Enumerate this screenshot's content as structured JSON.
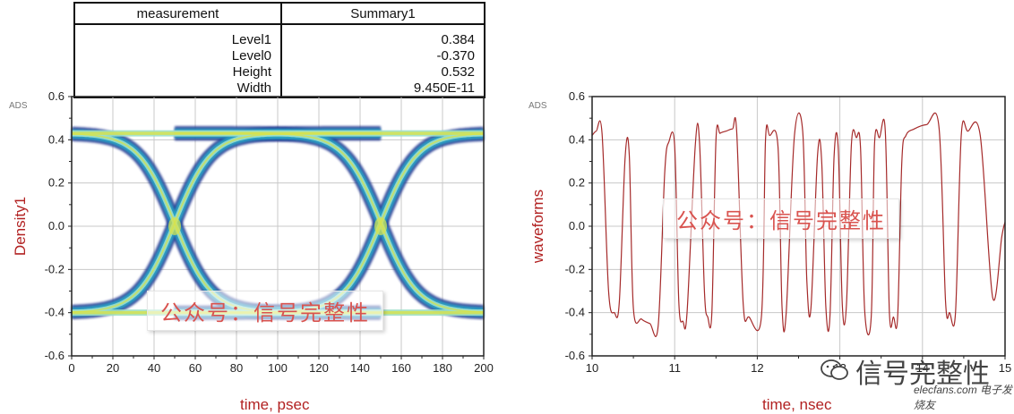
{
  "measurement_table": {
    "headers": [
      "measurement",
      "Summary1"
    ],
    "rows": [
      {
        "name": "Level1",
        "value": "0.384"
      },
      {
        "name": "Level0",
        "value": "-0.370"
      },
      {
        "name": "Height",
        "value": "0.532"
      },
      {
        "name": "Width",
        "value": "9.450E-11"
      }
    ]
  },
  "watermark_text": "公众号：信号完整性",
  "ads_label": "ADS",
  "logo": {
    "text": "信号完整性",
    "sub": "elecfans.com 电子发烧友"
  },
  "chart_data": [
    {
      "type": "heatmap",
      "subtype": "eye-diagram",
      "xlabel": "time, psec",
      "ylabel": "Density1",
      "xlim": [
        0,
        200
      ],
      "ylim": [
        -0.6,
        0.6
      ],
      "xticks": [
        0,
        20,
        40,
        60,
        80,
        100,
        120,
        140,
        160,
        180,
        200
      ],
      "yticks": [
        -0.6,
        -0.4,
        -0.2,
        0.0,
        0.2,
        0.4,
        0.6
      ],
      "grid": true,
      "levels": {
        "high": 0.43,
        "low": -0.4
      },
      "crossings_psec": [
        50,
        150
      ],
      "colors": {
        "outer": "#1a2a8a",
        "mid": "#2aa6c8",
        "core": "#9ee0c8",
        "hot": "#d8e24a"
      }
    },
    {
      "type": "line",
      "xlabel": "time, nsec",
      "ylabel": "waveforms",
      "xlim": [
        10,
        15
      ],
      "ylim": [
        -0.6,
        0.6
      ],
      "xticks": [
        10,
        11,
        12,
        13,
        14,
        15
      ],
      "yticks": [
        -0.6,
        -0.4,
        -0.2,
        0.0,
        0.2,
        0.4,
        0.6
      ],
      "grid": true,
      "line_color": "#a52a2a",
      "series": [
        {
          "x": [
            10.0,
            10.05,
            10.12,
            10.2,
            10.27,
            10.33,
            10.4,
            10.45,
            10.5,
            10.6,
            10.7,
            10.8,
            10.88,
            10.93,
            11.0,
            11.05,
            11.1,
            11.15,
            11.25,
            11.3,
            11.36,
            11.4,
            11.45,
            11.5,
            11.55,
            11.62,
            11.7,
            11.75,
            11.83,
            11.9,
            12.05,
            12.1,
            12.15,
            12.25,
            12.3,
            12.35,
            12.45,
            12.55,
            12.6,
            12.65,
            12.73,
            12.78,
            12.83,
            12.88,
            12.93,
            12.98,
            13.03,
            13.08,
            13.14,
            13.2,
            13.25,
            13.3,
            13.38,
            13.42,
            13.48,
            13.55,
            13.6,
            13.65,
            13.7,
            13.75,
            13.8,
            13.9,
            14.05,
            14.2,
            14.28,
            14.33,
            14.4,
            14.47,
            14.55,
            14.7,
            14.85,
            14.96,
            15.0
          ],
          "y": [
            0.42,
            0.44,
            0.43,
            -0.3,
            -0.4,
            -0.35,
            0.32,
            0.33,
            -0.38,
            -0.43,
            -0.45,
            -0.46,
            0.25,
            0.39,
            0.37,
            -0.35,
            -0.44,
            -0.4,
            0.38,
            0.39,
            -0.3,
            -0.42,
            -0.4,
            0.4,
            0.43,
            0.44,
            0.45,
            0.44,
            -0.36,
            -0.42,
            -0.42,
            0.4,
            0.42,
            0.37,
            -0.38,
            -0.4,
            0.42,
            0.44,
            -0.25,
            -0.38,
            0.33,
            0.3,
            -0.37,
            -0.42,
            0.32,
            0.36,
            -0.37,
            -0.36,
            0.38,
            0.41,
            0.36,
            -0.39,
            -0.42,
            0.38,
            0.41,
            0.44,
            -0.4,
            -0.42,
            -0.42,
            0.3,
            0.42,
            0.45,
            0.47,
            0.46,
            -0.35,
            -0.4,
            -0.4,
            0.42,
            0.44,
            0.42,
            -0.33,
            -0.05,
            0.02
          ]
        }
      ]
    }
  ]
}
